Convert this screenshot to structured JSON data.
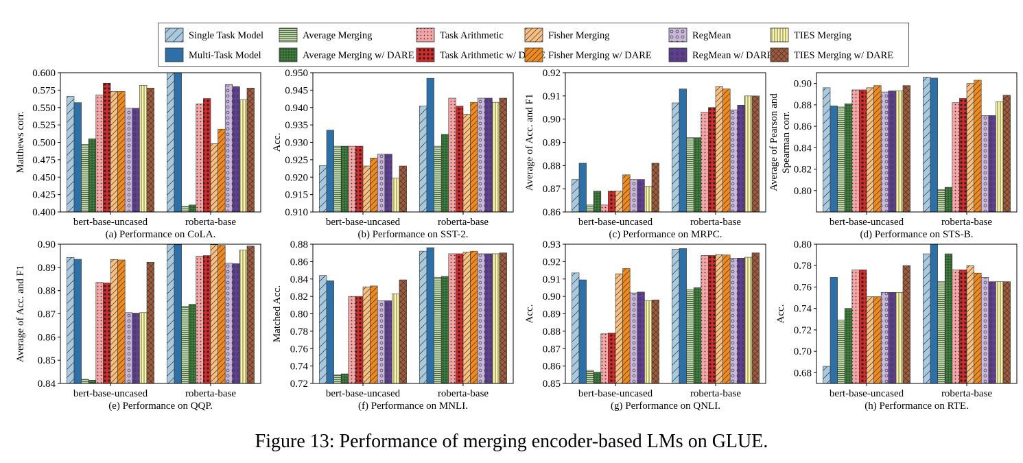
{
  "figure": {
    "caption": "Figure 13: Performance of merging encoder-based LMs on GLUE."
  },
  "methods": [
    {
      "name": "Single Task Model",
      "color": "#a9c9df",
      "hatch": "diag"
    },
    {
      "name": "Multi-Task Model",
      "color": "#2e6fa5",
      "hatch": "none"
    },
    {
      "name": "Average Merging",
      "color": "#b9d7a2",
      "hatch": "hlines"
    },
    {
      "name": "Average Merging w/ DARE",
      "color": "#3a8a3a",
      "hatch": "grid"
    },
    {
      "name": "Task Arithmetic",
      "color": "#f4a5a5",
      "hatch": "dots"
    },
    {
      "name": "Task Arithmetic w/ DARE",
      "color": "#d62a2a",
      "hatch": "stars"
    },
    {
      "name": "Fisher Merging",
      "color": "#f7bf80",
      "hatch": "rdiag"
    },
    {
      "name": "Fisher Merging w/ DARE",
      "color": "#f08a1c",
      "hatch": "rdiag"
    },
    {
      "name": "RegMean",
      "color": "#c9b8db",
      "hatch": "circles"
    },
    {
      "name": "RegMean w/ DARE",
      "color": "#5e3f92",
      "hatch": "circles"
    },
    {
      "name": "TIES Merging",
      "color": "#fbf7a8",
      "hatch": "vlines"
    },
    {
      "name": "TIES Merging w/ DARE",
      "color": "#a25b3a",
      "hatch": "xcross"
    }
  ],
  "legend_order": [
    0,
    1,
    2,
    3,
    4,
    5,
    6,
    7,
    8,
    9,
    10,
    11
  ],
  "chart_data": [
    {
      "type": "bar",
      "caption": "(a) Performance on CoLA.",
      "ylabel": "Matthews corr.",
      "categories": [
        "bert-base-uncased",
        "roberta-base"
      ],
      "ylim": [
        0.4,
        0.6
      ],
      "yticks": [
        "0.400",
        "0.425",
        "0.450",
        "0.475",
        "0.500",
        "0.525",
        "0.550",
        "0.575",
        "0.600"
      ],
      "values": [
        [
          0.566,
          0.557,
          0.497,
          0.505,
          0.568,
          0.585,
          0.573,
          0.573,
          0.549,
          0.549,
          0.582,
          0.578
        ],
        [
          0.601,
          0.606,
          0.408,
          0.41,
          0.555,
          0.563,
          0.498,
          0.519,
          0.583,
          0.58,
          0.561,
          0.578
        ]
      ]
    },
    {
      "type": "bar",
      "caption": "(b) Performance on SST-2.",
      "ylabel": "Acc.",
      "categories": [
        "bert-base-uncased",
        "roberta-base"
      ],
      "ylim": [
        0.91,
        0.95
      ],
      "yticks": [
        "0.910",
        "0.915",
        "0.920",
        "0.925",
        "0.930",
        "0.935",
        "0.940",
        "0.945",
        "0.950"
      ],
      "values": [
        [
          0.9233,
          0.9335,
          0.9289,
          0.9289,
          0.9289,
          0.9289,
          0.9232,
          0.9255,
          0.9266,
          0.9266,
          0.9197,
          0.9232
        ],
        [
          0.9404,
          0.9484,
          0.9289,
          0.9323,
          0.9427,
          0.9404,
          0.9381,
          0.9415,
          0.9427,
          0.9427,
          0.9415,
          0.9427
        ]
      ]
    },
    {
      "type": "bar",
      "caption": "(c) Performance on MRPC.",
      "ylabel": "Average of Acc. and F1",
      "categories": [
        "bert-base-uncased",
        "roberta-base"
      ],
      "ylim": [
        0.86,
        0.92
      ],
      "yticks": [
        "0.86",
        "0.87",
        "0.88",
        "0.89",
        "0.90",
        "0.91",
        "0.92"
      ],
      "values": [
        [
          0.874,
          0.881,
          0.863,
          0.869,
          0.863,
          0.869,
          0.869,
          0.876,
          0.874,
          0.874,
          0.871,
          0.881
        ],
        [
          0.907,
          0.913,
          0.892,
          0.892,
          0.903,
          0.905,
          0.914,
          0.913,
          0.904,
          0.906,
          0.91,
          0.91
        ]
      ]
    },
    {
      "type": "bar",
      "caption": "(d) Performance on STS-B.",
      "ylabel": "Average of Pearson and Spearman corr.",
      "ylabel_lines": [
        "Average of Pearson and",
        "Spearman corr."
      ],
      "categories": [
        "bert-base-uncased",
        "roberta-base"
      ],
      "ylim": [
        0.78,
        0.91
      ],
      "yticks": [
        "0.80",
        "0.82",
        "0.84",
        "0.86",
        "0.88",
        "0.90"
      ],
      "values": [
        [
          0.896,
          0.879,
          0.878,
          0.881,
          0.894,
          0.894,
          0.896,
          0.898,
          0.892,
          0.893,
          0.893,
          0.898
        ],
        [
          0.906,
          0.905,
          0.801,
          0.803,
          0.882,
          0.886,
          0.9,
          0.903,
          0.87,
          0.87,
          0.883,
          0.889
        ]
      ]
    },
    {
      "type": "bar",
      "caption": "(e) Performance on QQP.",
      "ylabel": "Average of Acc. and F1",
      "categories": [
        "bert-base-uncased",
        "roberta-base"
      ],
      "ylim": [
        0.84,
        0.9
      ],
      "yticks": [
        "0.84",
        "0.85",
        "0.86",
        "0.87",
        "0.88",
        "0.89",
        "0.90"
      ],
      "values": [
        [
          0.8943,
          0.8935,
          0.8418,
          0.8414,
          0.8835,
          0.8833,
          0.8934,
          0.8932,
          0.8705,
          0.8703,
          0.8705,
          0.8922
        ],
        [
          0.8999,
          0.8998,
          0.8733,
          0.8741,
          0.8949,
          0.8951,
          0.8998,
          0.8995,
          0.8918,
          0.8916,
          0.8975,
          0.8992
        ]
      ]
    },
    {
      "type": "bar",
      "caption": "(f) Performance on MNLI.",
      "ylabel": "Matched Acc.",
      "categories": [
        "bert-base-uncased",
        "roberta-base"
      ],
      "ylim": [
        0.72,
        0.88
      ],
      "yticks": [
        "0.72",
        "0.74",
        "0.76",
        "0.78",
        "0.80",
        "0.82",
        "0.84",
        "0.86",
        "0.88"
      ],
      "values": [
        [
          0.844,
          0.838,
          0.73,
          0.731,
          0.82,
          0.82,
          0.831,
          0.832,
          0.815,
          0.815,
          0.823,
          0.839
        ],
        [
          0.872,
          0.876,
          0.842,
          0.843,
          0.869,
          0.869,
          0.871,
          0.872,
          0.869,
          0.869,
          0.869,
          0.87
        ]
      ]
    },
    {
      "type": "bar",
      "caption": "(g) Performance on QNLI.",
      "ylabel": "Acc.",
      "categories": [
        "bert-base-uncased",
        "roberta-base"
      ],
      "ylim": [
        0.85,
        0.93
      ],
      "yticks": [
        "0.85",
        "0.86",
        "0.87",
        "0.88",
        "0.89",
        "0.90",
        "0.91",
        "0.92",
        "0.93"
      ],
      "values": [
        [
          0.9135,
          0.9095,
          0.8575,
          0.8565,
          0.8785,
          0.879,
          0.913,
          0.916,
          0.902,
          0.9025,
          0.8975,
          0.898
        ],
        [
          0.927,
          0.9275,
          0.904,
          0.905,
          0.9235,
          0.9235,
          0.924,
          0.9238,
          0.922,
          0.922,
          0.9225,
          0.925
        ]
      ]
    },
    {
      "type": "bar",
      "caption": "(h) Performance on RTE.",
      "ylabel": "Acc.",
      "categories": [
        "bert-base-uncased",
        "roberta-base"
      ],
      "ylim": [
        0.67,
        0.8
      ],
      "yticks": [
        "0.68",
        "0.70",
        "0.72",
        "0.74",
        "0.76",
        "0.78",
        "0.80"
      ],
      "values": [
        [
          0.686,
          0.769,
          0.729,
          0.74,
          0.776,
          0.776,
          0.751,
          0.751,
          0.755,
          0.755,
          0.755,
          0.78
        ],
        [
          0.791,
          0.802,
          0.765,
          0.791,
          0.776,
          0.776,
          0.78,
          0.773,
          0.769,
          0.765,
          0.765,
          0.765
        ]
      ]
    }
  ]
}
